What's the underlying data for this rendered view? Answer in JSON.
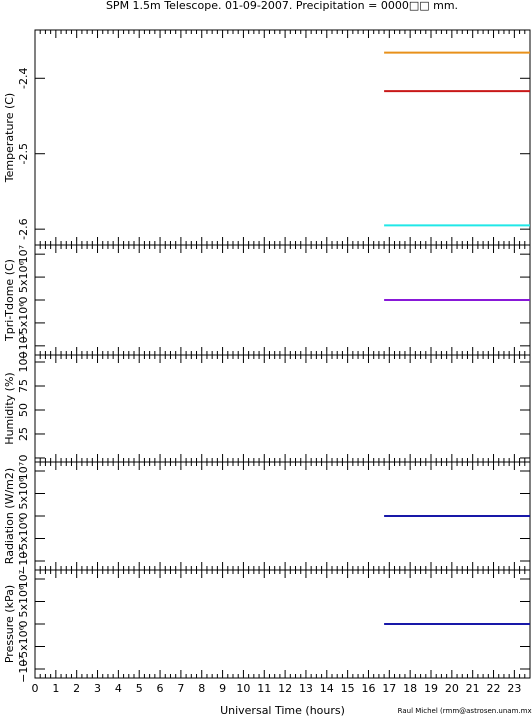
{
  "title": "SPM 1.5m Telescope. 01-09-2007. Precipitation = 0000□□ mm.",
  "footer": "Raul Michel (rmm@astrosen.unam.mx)",
  "chart_data": [
    {
      "type": "line",
      "ylabel": "Temperature (C)",
      "ylim": [
        -2.621,
        -2.336
      ],
      "yticks": [
        -2.6,
        -2.5,
        -2.4
      ],
      "series": [
        {
          "color": "#e8901a",
          "x": [
            16.75,
            23.75
          ],
          "values": [
            -2.366,
            -2.366
          ]
        },
        {
          "color": "#c81818",
          "x": [
            16.75,
            23.75
          ],
          "values": [
            -2.417,
            -2.417
          ]
        },
        {
          "color": "#20e8e8",
          "x": [
            16.75,
            23.75
          ],
          "values": [
            -2.595,
            -2.595
          ]
        }
      ]
    },
    {
      "type": "line",
      "ylabel": "Tpri-Tdome (C)",
      "ylim": [
        -12000000,
        12000000
      ],
      "yticks": [
        {
          "value": -10000000,
          "label": "−10⁷"
        },
        {
          "value": -5000000,
          "label": "−5x10⁶"
        },
        0,
        {
          "value": 5000000,
          "label": "5x10⁶"
        },
        {
          "value": 10000000,
          "label": "10⁷"
        }
      ],
      "series": [
        {
          "color": "#8818d8",
          "x": [
            16.75,
            23.75
          ],
          "values": [
            0,
            0
          ]
        }
      ]
    },
    {
      "type": "line",
      "ylabel": "Humidity (%)",
      "ylim": [
        -4.2,
        107.3
      ],
      "yticks": [
        0,
        25,
        50,
        75,
        100
      ],
      "series": []
    },
    {
      "type": "line",
      "ylabel": "Radiation (W/m2)",
      "ylim": [
        -12000000,
        12000000
      ],
      "yticks": [
        {
          "value": -10000000,
          "label": "−10⁷"
        },
        {
          "value": -5000000,
          "label": "−5x10⁶"
        },
        0,
        {
          "value": 5000000,
          "label": "5x10⁶"
        },
        {
          "value": 10000000,
          "label": "10⁷"
        }
      ],
      "series": [
        {
          "color": "#1818a8",
          "x": [
            16.75,
            23.75
          ],
          "values": [
            0,
            0
          ]
        }
      ]
    },
    {
      "type": "line",
      "ylabel": "Pressure (kPa)",
      "xlabel": "Universal Time (hours)",
      "ylim": [
        -12000000,
        12000000
      ],
      "yticks": [
        {
          "value": -10000000,
          "label": "−10⁷"
        },
        {
          "value": -5000000,
          "label": "−5x10⁶"
        },
        0,
        {
          "value": 5000000,
          "label": "5x10⁶"
        },
        {
          "value": 10000000,
          "label": "10⁷"
        }
      ],
      "xlim": [
        0,
        23.75
      ],
      "xticks": [
        0,
        1,
        2,
        3,
        4,
        5,
        6,
        7,
        8,
        9,
        10,
        11,
        12,
        13,
        14,
        15,
        16,
        17,
        18,
        19,
        20,
        21,
        22,
        23
      ],
      "series": [
        {
          "color": "#1818a8",
          "x": [
            16.75,
            23.75
          ],
          "values": [
            0,
            0
          ]
        }
      ]
    }
  ]
}
